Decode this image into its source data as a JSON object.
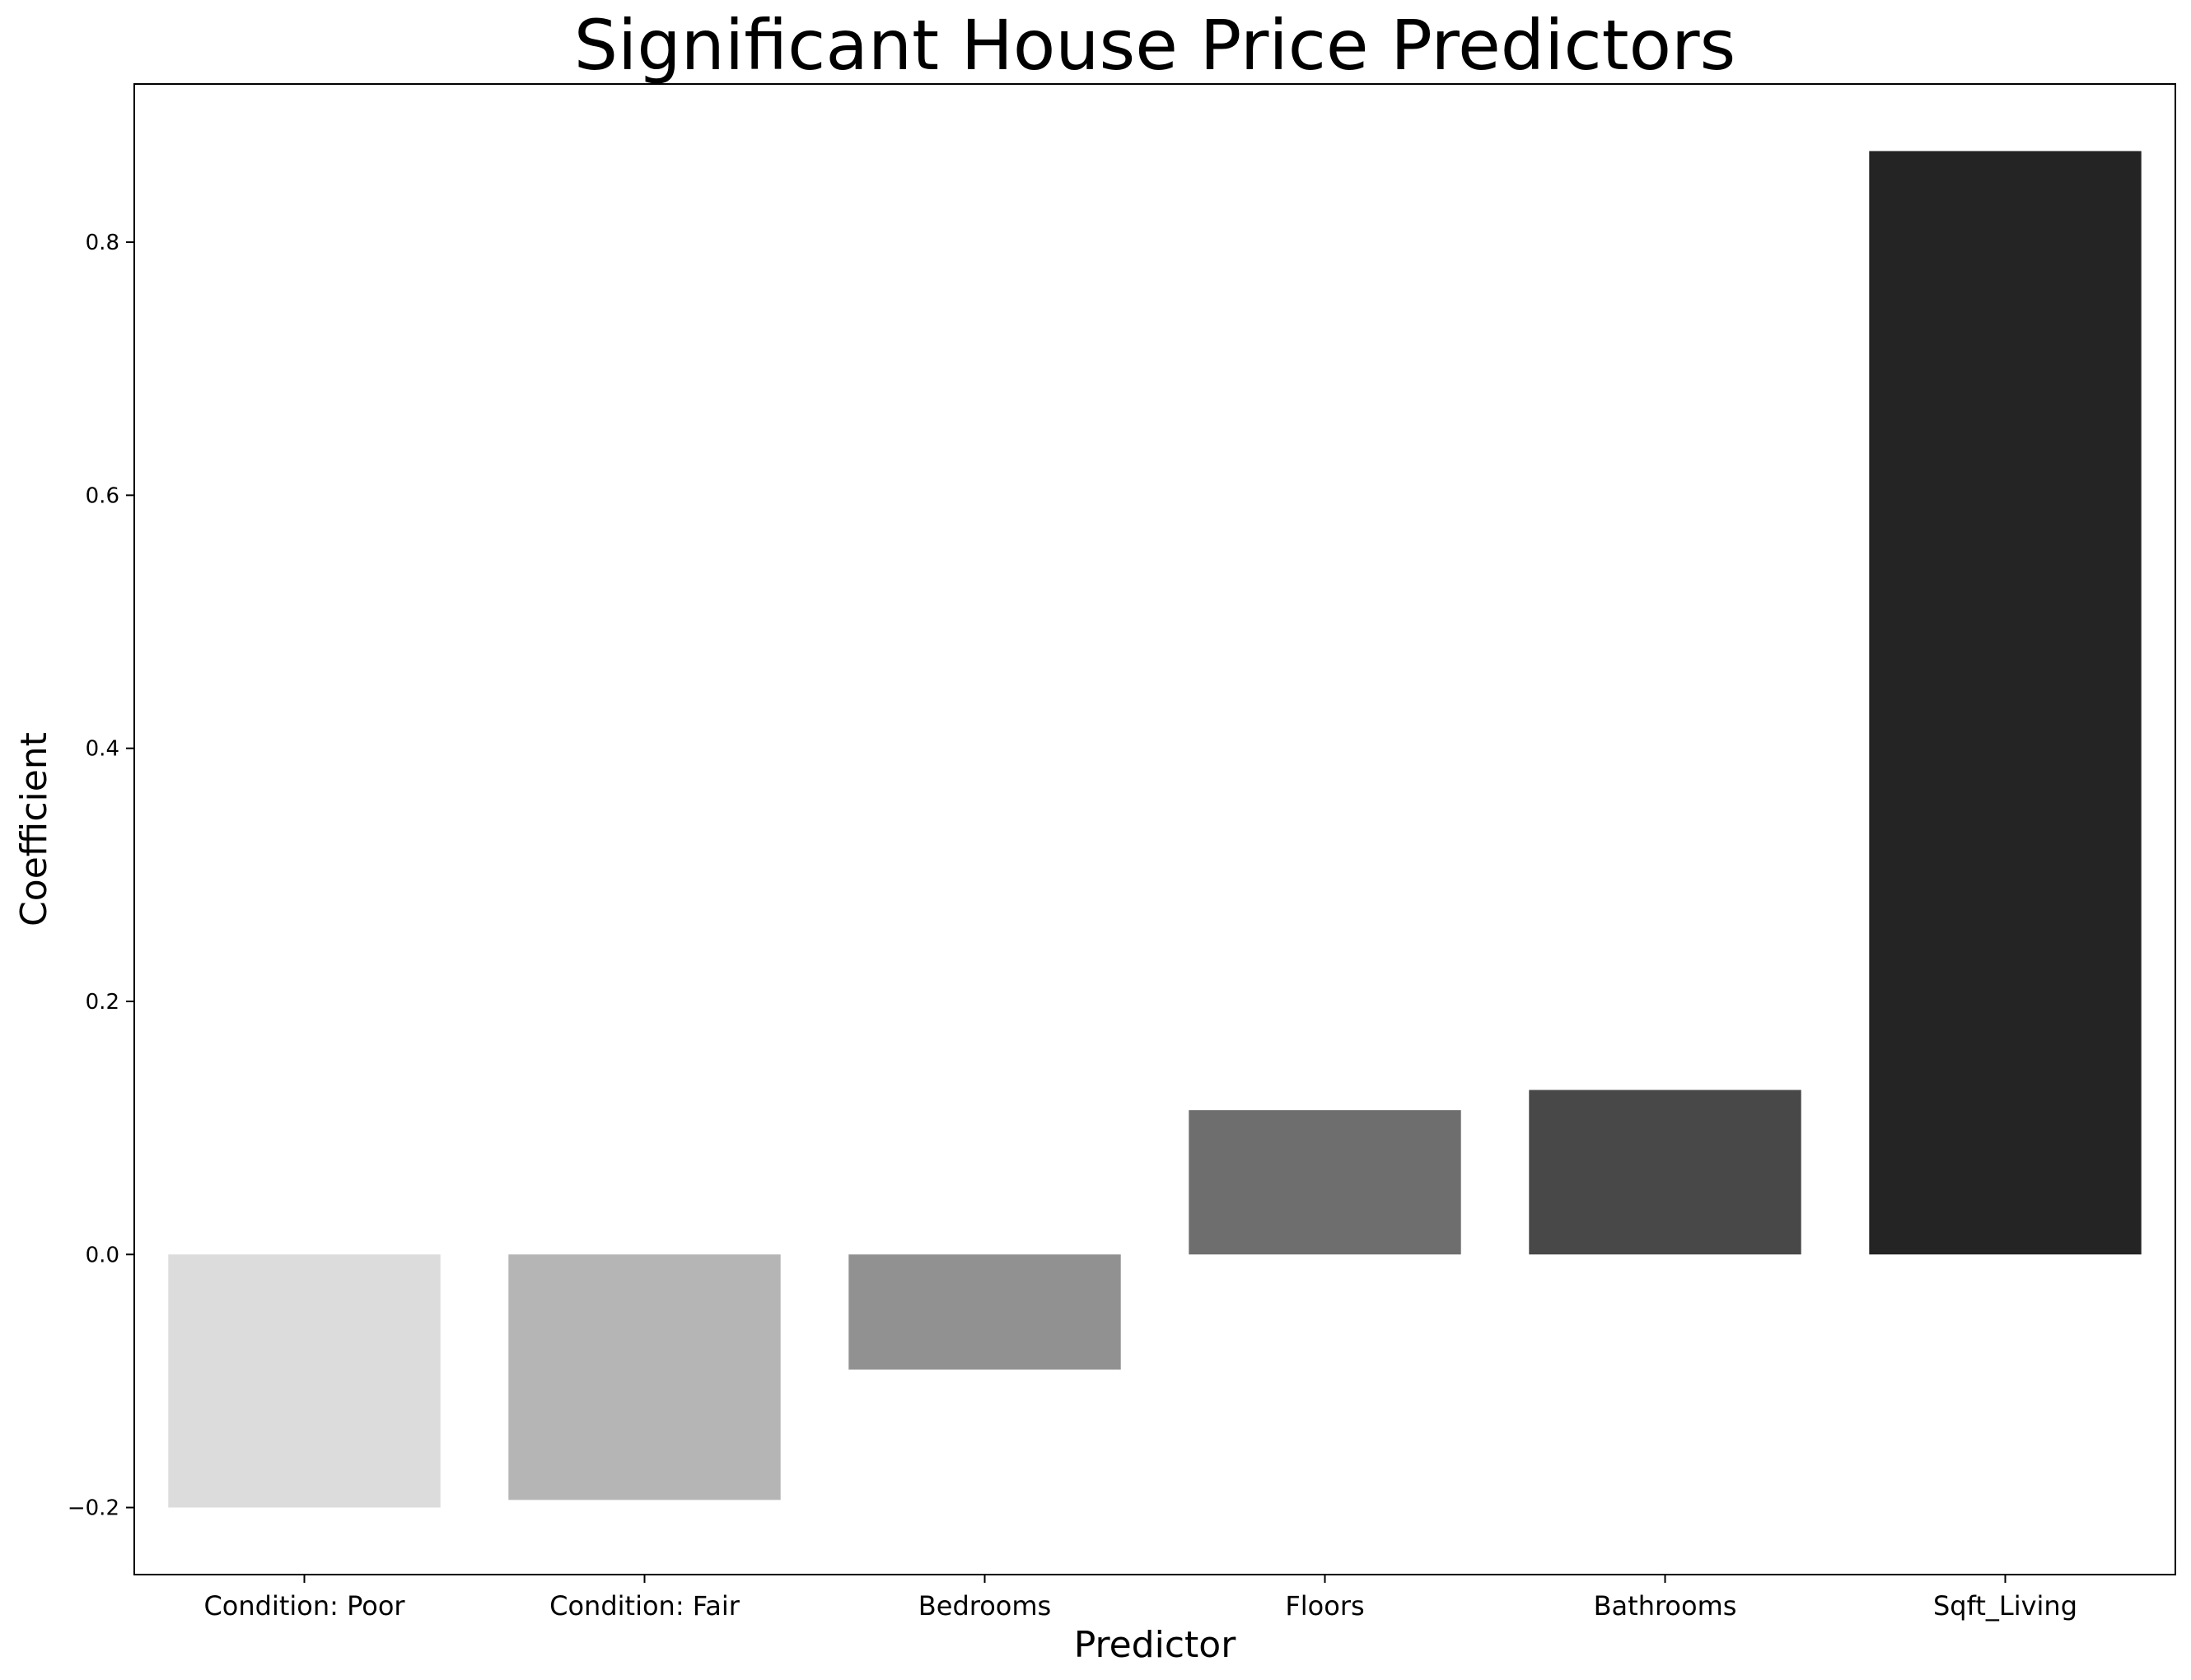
{
  "chart_data": {
    "type": "bar",
    "title": "Significant House Price Predictors",
    "xlabel": "Predictor",
    "ylabel": "Coefficient",
    "categories": [
      "Condition: Poor",
      "Condition: Fair",
      "Bedrooms",
      "Floors",
      "Bathrooms",
      "Sqft_Living"
    ],
    "values": [
      -0.2,
      -0.194,
      -0.091,
      0.114,
      0.13,
      0.872
    ],
    "colors": [
      "#dcdcdc",
      "#b5b5b5",
      "#919191",
      "#6e6e6e",
      "#484848",
      "#242424"
    ],
    "ylim": [
      -0.253,
      0.925
    ],
    "yticks": [
      -0.2,
      0.0,
      0.2,
      0.4,
      0.6,
      0.8
    ],
    "ytick_labels": [
      "−0.2",
      "0.0",
      "0.2",
      "0.4",
      "0.6",
      "0.8"
    ],
    "grid": false,
    "legend": "none"
  }
}
